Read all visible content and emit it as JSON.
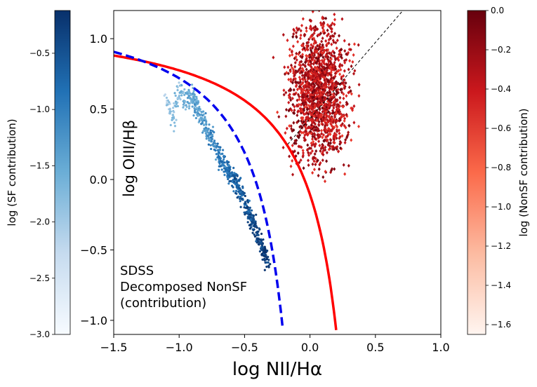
{
  "chart_data": {
    "type": "scatter",
    "title": "",
    "xlabel": "log NII/Hα",
    "ylabel": "log OIII/Hβ",
    "xlim": [
      -1.5,
      1.0
    ],
    "ylim": [
      -1.1,
      1.2
    ],
    "x_ticks": [
      "−1.5",
      "−1.0",
      "−0.5",
      "0.0",
      "0.5",
      "1.0"
    ],
    "x_tick_values": [
      -1.5,
      -1.0,
      -0.5,
      0.0,
      0.5,
      1.0
    ],
    "y_ticks": [
      "−1.0",
      "−0.5",
      "0.0",
      "0.5",
      "1.0"
    ],
    "y_tick_values": [
      -1.0,
      -0.5,
      0.0,
      0.5,
      1.0
    ],
    "grid": false,
    "annotation": [
      "SDSS",
      "Decomposed NonSF",
      "(contribution)"
    ],
    "lines": [
      {
        "style": "solid",
        "color": "#ff0000",
        "formula": "0.61/(x-0.47)+1.19",
        "x_range": [
          -1.5,
          0.2
        ]
      },
      {
        "style": "dashed",
        "color": "#0000ee",
        "formula": "0.61/(x-0.05)+1.3",
        "x_range": [
          -1.5,
          -0.21
        ]
      },
      {
        "style": "dashed-thin",
        "color": "#000000",
        "points": [
          [
            -0.17,
            0.25
          ],
          [
            0.71,
            1.2
          ]
        ]
      }
    ],
    "series": [
      {
        "name": "",
        "colormap": "Blues",
        "marker": "star",
        "approx_points": [
          [
            -1.1,
            0.62
          ],
          [
            -1.05,
            0.42
          ],
          [
            -1.0,
            0.68
          ],
          [
            -0.95,
            0.58
          ],
          [
            -0.9,
            0.62
          ],
          [
            -0.85,
            0.5
          ],
          [
            -0.8,
            0.4
          ],
          [
            -0.75,
            0.3
          ],
          [
            -0.7,
            0.2
          ],
          [
            -0.65,
            0.12
          ],
          [
            -0.6,
            0.05
          ],
          [
            -0.55,
            -0.02
          ],
          [
            -0.5,
            -0.12
          ],
          [
            -0.45,
            -0.25
          ],
          [
            -0.4,
            -0.38
          ],
          [
            -0.35,
            -0.5
          ],
          [
            -0.32,
            -0.58
          ]
        ],
        "point_count": 650
      },
      {
        "name": "",
        "colormap": "Reds",
        "marker": "diamond",
        "approx_x_range": [
          -0.35,
          0.45
        ],
        "approx_y_range": [
          -0.02,
          1.2
        ],
        "point_count": 1500
      }
    ],
    "colorbars": [
      {
        "cmap": "Blues",
        "label": "log (SF contribution)",
        "range": [
          -3.0,
          -0.12
        ],
        "ticks": [
          "−3.0",
          "−2.5",
          "−2.0",
          "−1.5",
          "−1.0",
          "−0.5"
        ],
        "tick_values": [
          -3.0,
          -2.5,
          -2.0,
          -1.5,
          -1.0,
          -0.5
        ]
      },
      {
        "cmap": "Reds",
        "label": "log (NonSF contribution)",
        "range": [
          -1.65,
          0.0
        ],
        "ticks": [
          "−1.6",
          "−1.4",
          "−1.2",
          "−1.0",
          "−0.8",
          "−0.6",
          "−0.4",
          "−0.2",
          "0.0"
        ],
        "tick_values": [
          -1.6,
          -1.4,
          -1.2,
          -1.0,
          -0.8,
          -0.6,
          -0.4,
          -0.2,
          0.0
        ]
      }
    ]
  }
}
